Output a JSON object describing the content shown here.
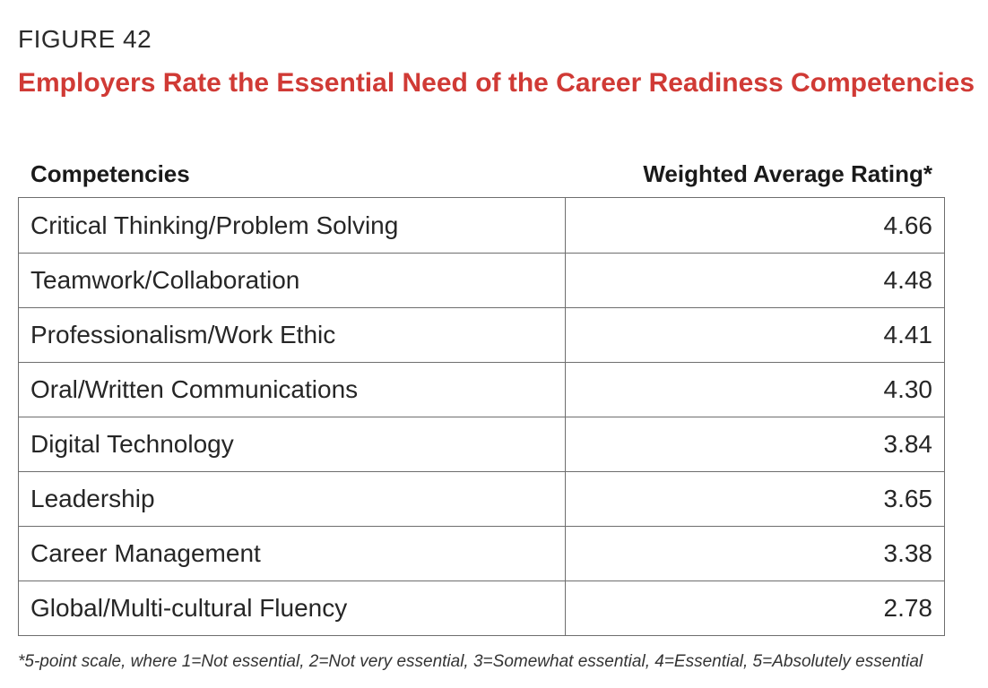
{
  "figure_label": "FIGURE 42",
  "chart_data": {
    "type": "table",
    "title": "Employers Rate the Essential Need of the Career Readiness Competencies",
    "columns": [
      "Competencies",
      "Weighted Average Rating*"
    ],
    "rows": [
      {
        "label": "Critical Thinking/Problem Solving",
        "value": "4.66"
      },
      {
        "label": "Teamwork/Collaboration",
        "value": "4.48"
      },
      {
        "label": "Professionalism/Work Ethic",
        "value": "4.41"
      },
      {
        "label": "Oral/Written Communications",
        "value": "4.30"
      },
      {
        "label": "Digital Technology",
        "value": "3.84"
      },
      {
        "label": "Leadership",
        "value": "3.65"
      },
      {
        "label": "Career Management",
        "value": "3.38"
      },
      {
        "label": "Global/Multi-cultural Fluency",
        "value": "2.78"
      }
    ],
    "footnote": "*5-point scale, where 1=Not essential, 2=Not very essential, 3=Somewhat essential, 4=Essential, 5=Absolutely essential"
  },
  "colors": {
    "title": "#d03a35",
    "border": "#6e6e6e",
    "text": "#262626"
  }
}
